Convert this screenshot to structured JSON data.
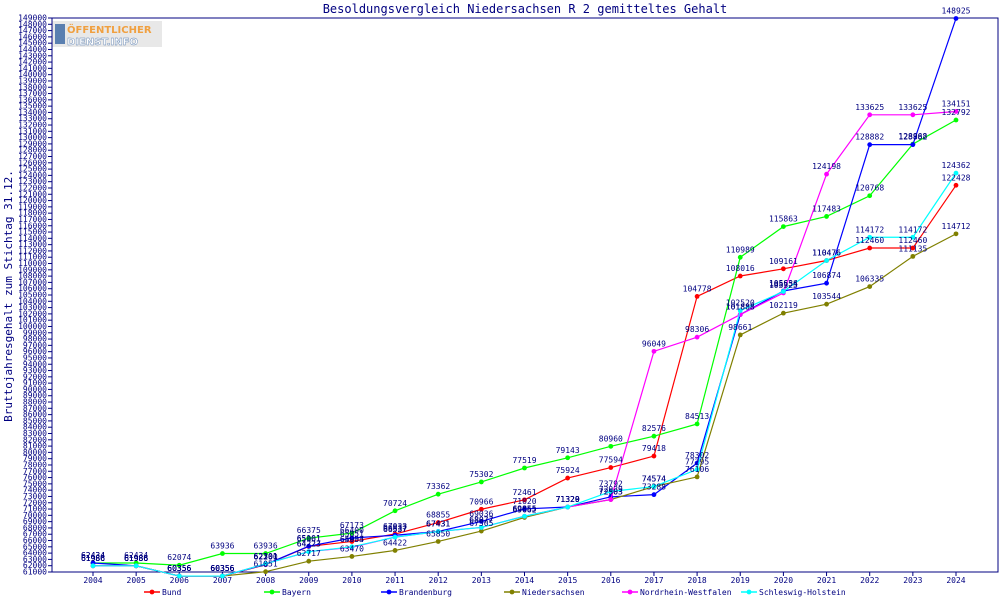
{
  "logo": {
    "line1": "ÖFFENTLICHER",
    "line2": "DIENST.INFO"
  },
  "colors": {
    "axis": "#000080",
    "text": "#000080",
    "background": "#ffffff"
  },
  "chart_data": {
    "type": "line",
    "title": "Besoldungsvergleich Niedersachsen R 2 gemitteltes Gehalt",
    "ylabel": "Bruttojahresgehalt zum Stichtag 31.12.",
    "xlabel": "",
    "ylim": [
      61000,
      149000
    ],
    "ytick_step": 1000,
    "grid": false,
    "legend_position": "bottom",
    "x": [
      "2004",
      "2005",
      "2006",
      "2007",
      "2008",
      "2009",
      "2010",
      "2011",
      "2012",
      "2013",
      "2014",
      "2015",
      "2016",
      "2017",
      "2018",
      "2019",
      "2020",
      "2021",
      "2022",
      "2023",
      "2024"
    ],
    "series": [
      {
        "name": "Bund",
        "color": "#ff0000",
        "values": [
          61986,
          61986,
          60356,
          60356,
          62160,
          65061,
          65851,
          67033,
          68855,
          70966,
          72461,
          75924,
          77594,
          79418,
          104778,
          108016,
          109161,
          110476,
          112460,
          112460,
          122428
        ]
      },
      {
        "name": "Bayern",
        "color": "#00ff00",
        "values": [
          62434,
          62434,
          62074,
          63936,
          63936,
          66375,
          67173,
          70724,
          73362,
          75302,
          77519,
          79143,
          80960,
          82576,
          84513,
          110989,
          115863,
          117483,
          120768,
          128968,
          132792
        ]
      },
      {
        "name": "Brandenburg",
        "color": "#0000ff",
        "values": [
          62434,
          61986,
          60356,
          60356,
          62201,
          65101,
          66400,
          66837,
          67431,
          69036,
          71020,
          71320,
          72939,
          73288,
          78302,
          101888,
          105634,
          106874,
          128882,
          128882,
          148925
        ]
      },
      {
        "name": "Niedersachsen",
        "color": "#808000",
        "values": [
          61986,
          61986,
          60356,
          60356,
          61051,
          62717,
          63470,
          64422,
          65850,
          67505,
          69662,
          71329,
          72503,
          74574,
          76106,
          98661,
          102119,
          103544,
          106335,
          111135,
          114712
        ]
      },
      {
        "name": "Nordrhein-Westfalen",
        "color": "#ff00ff",
        "values": [
          61986,
          61986,
          60356,
          60356,
          62301,
          64223,
          64934,
          66537,
          67431,
          68077,
          69855,
          71320,
          72503,
          96049,
          98306,
          101888,
          105325,
          124198,
          133625,
          133625,
          134151
        ]
      },
      {
        "name": "Schleswig-Holstein",
        "color": "#00ffff",
        "values": [
          61986,
          61986,
          60356,
          60356,
          62301,
          64223,
          65003,
          66537,
          67431,
          68077,
          69855,
          71320,
          73792,
          74574,
          77295,
          102520,
          105555,
          110476,
          114172,
          114172,
          124362
        ]
      }
    ]
  }
}
